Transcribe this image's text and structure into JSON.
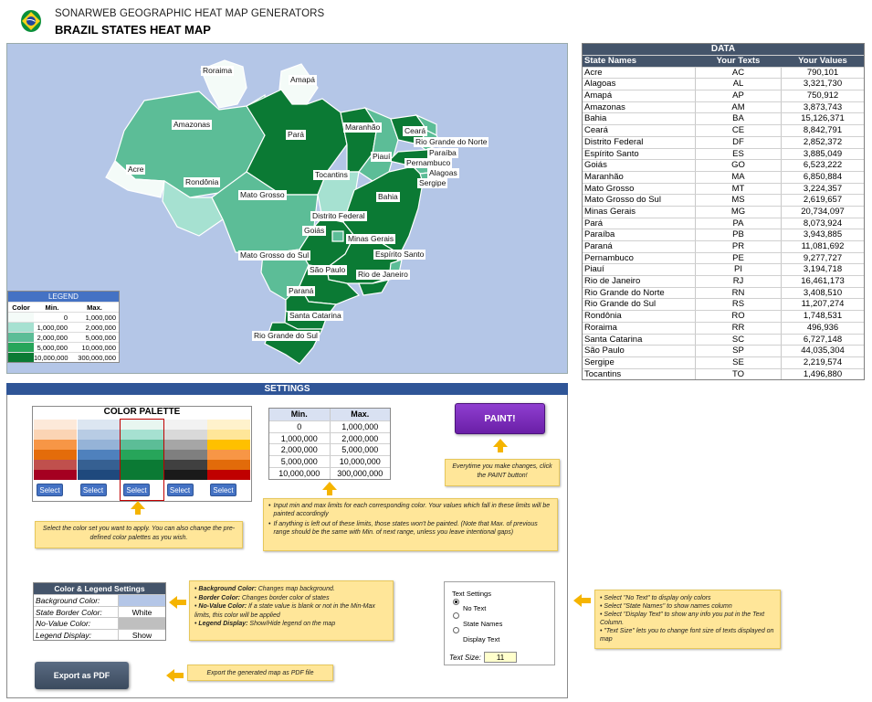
{
  "header": {
    "subtitle": "SONARWEB GEOGRAPHIC HEAT MAP GENERATORS",
    "title": "BRAZIL STATES HEAT MAP"
  },
  "colors": {
    "map_background": "#b4c6e7",
    "tier_1": "#f4fbf8",
    "tier_2": "#a6e1d1",
    "tier_3": "#5cbd97",
    "tier_4": "#27a55a",
    "tier_5": "#0b7a34",
    "header_dark": "#44546a",
    "accent_blue": "#4472c4",
    "paint_purple": "#7a2bb8",
    "note_yellow": "#ffe699"
  },
  "map_labels": [
    "Roraima",
    "Amapá",
    "Amazonas",
    "Pará",
    "Maranhão",
    "Ceará",
    "Rio Grande do Norte",
    "Paraíba",
    "Piauí",
    "Pernambuco",
    "Alagoas",
    "Acre",
    "Tocantins",
    "Sergipe",
    "Rondônia",
    "Mato Grosso",
    "Bahia",
    "Distrito Federal",
    "Goiás",
    "Minas Gerais",
    "Espírito Santo",
    "Mato Grosso do Sul",
    "São Paulo",
    "Rio de Janeiro",
    "Paraná",
    "Santa Catarina",
    "Rio Grande do Sul"
  ],
  "legend": {
    "title": "LEGEND",
    "headers": [
      "Color",
      "Min.",
      "Max."
    ],
    "rows": [
      {
        "min": "0",
        "max": "1,000,000"
      },
      {
        "min": "1,000,000",
        "max": "2,000,000"
      },
      {
        "min": "2,000,000",
        "max": "5,000,000"
      },
      {
        "min": "5,000,000",
        "max": "10,000,000"
      },
      {
        "min": "10,000,000",
        "max": "300,000,000"
      }
    ]
  },
  "data_table": {
    "title": "DATA",
    "headers": [
      "State Names",
      "Your Texts",
      "Your Values"
    ],
    "rows": [
      [
        "Acre",
        "AC",
        "790,101"
      ],
      [
        "Alagoas",
        "AL",
        "3,321,730"
      ],
      [
        "Amapá",
        "AP",
        "750,912"
      ],
      [
        "Amazonas",
        "AM",
        "3,873,743"
      ],
      [
        "Bahia",
        "BA",
        "15,126,371"
      ],
      [
        "Ceará",
        "CE",
        "8,842,791"
      ],
      [
        "Distrito Federal",
        "DF",
        "2,852,372"
      ],
      [
        "Espírito Santo",
        "ES",
        "3,885,049"
      ],
      [
        "Goiás",
        "GO",
        "6,523,222"
      ],
      [
        "Maranhão",
        "MA",
        "6,850,884"
      ],
      [
        "Mato Grosso",
        "MT",
        "3,224,357"
      ],
      [
        "Mato Grosso do Sul",
        "MS",
        "2,619,657"
      ],
      [
        "Minas Gerais",
        "MG",
        "20,734,097"
      ],
      [
        "Pará",
        "PA",
        "8,073,924"
      ],
      [
        "Paraíba",
        "PB",
        "3,943,885"
      ],
      [
        "Paraná",
        "PR",
        "11,081,692"
      ],
      [
        "Pernambuco",
        "PE",
        "9,277,727"
      ],
      [
        "Piauí",
        "PI",
        "3,194,718"
      ],
      [
        "Rio de Janeiro",
        "RJ",
        "16,461,173"
      ],
      [
        "Rio Grande do Norte",
        "RN",
        "3,408,510"
      ],
      [
        "Rio Grande do Sul",
        "RS",
        "11,207,274"
      ],
      [
        "Rondônia",
        "RO",
        "1,748,531"
      ],
      [
        "Roraima",
        "RR",
        "496,936"
      ],
      [
        "Santa Catarina",
        "SC",
        "6,727,148"
      ],
      [
        "São Paulo",
        "SP",
        "44,035,304"
      ],
      [
        "Sergipe",
        "SE",
        "2,219,574"
      ],
      [
        "Tocantins",
        "TO",
        "1,496,880"
      ]
    ]
  },
  "settings": {
    "title": "SETTINGS",
    "palette_title": "COLOR PALETTE",
    "select_label": "Select",
    "palette_columns": [
      [
        "#fde9d9",
        "#fbd4b4",
        "#f79646",
        "#e46c0a",
        "#c0504d",
        "#a50021"
      ],
      [
        "#dce6f1",
        "#b8cce4",
        "#95b3d7",
        "#4f81bd",
        "#366092",
        "#1f497d"
      ],
      [
        "#e8f6f0",
        "#a6e1d1",
        "#5cbd97",
        "#27a55a",
        "#0b7a34",
        "#0b7a34"
      ],
      [
        "#f2f2f2",
        "#d9d9d9",
        "#a6a6a6",
        "#7f7f7f",
        "#404040",
        "#1a1a1a"
      ],
      [
        "#fff2cc",
        "#ffe699",
        "#ffc000",
        "#f79646",
        "#e26b0a",
        "#c00000"
      ]
    ],
    "selected_palette": 2,
    "minmax_headers": [
      "Min.",
      "Max."
    ],
    "minmax_rows": [
      [
        "0",
        "1,000,000"
      ],
      [
        "1,000,000",
        "2,000,000"
      ],
      [
        "2,000,000",
        "5,000,000"
      ],
      [
        "5,000,000",
        "10,000,000"
      ],
      [
        "10,000,000",
        "300,000,000"
      ]
    ],
    "paint_label": "PAINT!",
    "paint_note": "Everytime you make changes, click the PAINT button!",
    "palette_note": "Select the color set you want to apply. You can also change the pre-defined color palettes as you wish.",
    "limits_note_1": "Input min and max limits for each corresponding color. Your values which fall in these limits will be painted accordingly",
    "limits_note_2": "If anything is left out of these limits, those states won't be painted. (Note that Max. of previous range should be the same with Min. of next range, unless you leave intentional gaps)",
    "cls_title": "Color & Legend Settings",
    "cls_rows": [
      {
        "label": "Background Color:",
        "value": ""
      },
      {
        "label": "State Border Color:",
        "value": "White"
      },
      {
        "label": "No-Value Color:",
        "value": ""
      },
      {
        "label": "Legend Display:",
        "value": "Show"
      }
    ],
    "cls_notes": [
      {
        "term": "Background Color:",
        "text": " Changes map background."
      },
      {
        "term": "Border Color:",
        "text": " Changes border color of states"
      },
      {
        "term": "No-Value Color:",
        "text": " If a state value is blank or not in the Min-Max limits, this color will be applied"
      },
      {
        "term": "Legend Display:",
        "text": " Show/Hide legend on the map"
      }
    ],
    "export_label": "Export as PDF",
    "export_note": "Export the generated map as PDF file",
    "text_settings": {
      "title": "Text Settings",
      "options": [
        "No Text",
        "State Names",
        "Display Text"
      ],
      "selected": 0,
      "size_label": "Text Size:",
      "size_value": "11"
    },
    "text_notes": [
      "Select \"No Text\" to display only colors",
      "Select \"State Names\" to show names column",
      "Select \"Display Text\" to show any info you put in the Text Column.",
      "\"Text Size\" lets you to change font size of texts displayed on map"
    ]
  }
}
